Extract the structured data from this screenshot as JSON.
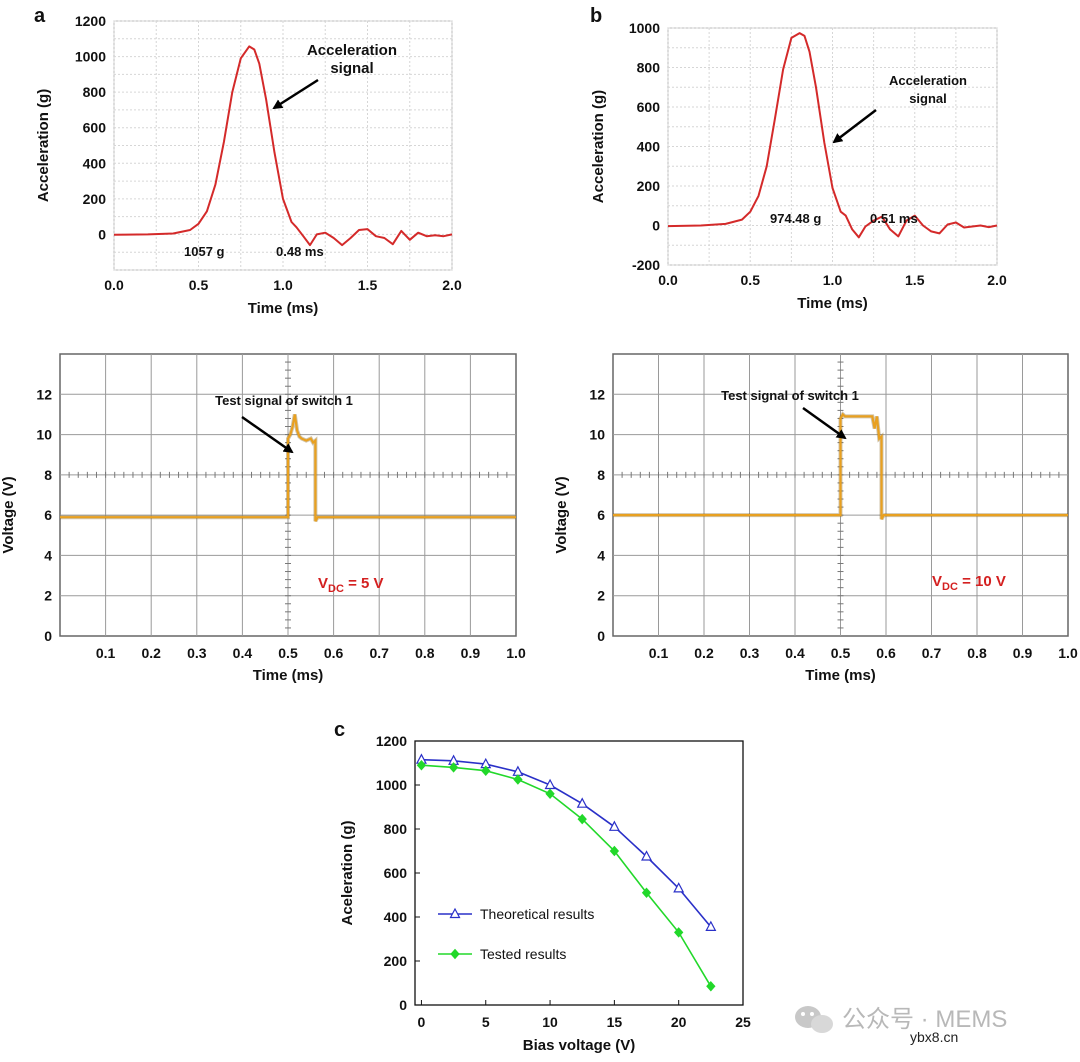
{
  "panels": {
    "a_label": "a",
    "b_label": "b",
    "c_label": "c"
  },
  "chart_data": [
    {
      "id": "a_top",
      "type": "line",
      "xlabel": "Time (ms)",
      "ylabel": "Acceleration (g)",
      "xlim": [
        0.0,
        2.0
      ],
      "ylim": [
        -200,
        1200
      ],
      "xticks": [
        "0.0",
        "0.5",
        "1.0",
        "1.5",
        "2.0"
      ],
      "yticks": [
        "0",
        "200",
        "400",
        "600",
        "800",
        "1000",
        "1200"
      ],
      "grid": true,
      "color": "#d42a2a",
      "annotation": "Acceleration signal",
      "peak_label": "1057 g",
      "width_label": "0.48 ms",
      "series": [
        {
          "name": "Acceleration signal",
          "x": [
            0.0,
            0.2,
            0.35,
            0.45,
            0.5,
            0.55,
            0.6,
            0.65,
            0.7,
            0.75,
            0.8,
            0.83,
            0.86,
            0.9,
            0.95,
            1.0,
            1.05,
            1.08,
            1.12,
            1.16,
            1.2,
            1.25,
            1.3,
            1.35,
            1.4,
            1.45,
            1.5,
            1.55,
            1.6,
            1.65,
            1.7,
            1.75,
            1.8,
            1.85,
            1.9,
            1.95,
            2.0
          ],
          "y": [
            -2,
            0,
            5,
            25,
            60,
            130,
            280,
            520,
            800,
            990,
            1057,
            1040,
            960,
            760,
            460,
            200,
            70,
            40,
            -10,
            -60,
            0,
            10,
            -20,
            -60,
            -20,
            25,
            30,
            -10,
            -20,
            -55,
            20,
            -30,
            10,
            -10,
            -5,
            -10,
            0
          ]
        }
      ]
    },
    {
      "id": "b_top",
      "type": "line",
      "xlabel": "Time (ms)",
      "ylabel": "Acceleration (g)",
      "xlim": [
        0.0,
        2.0
      ],
      "ylim": [
        -200,
        1000
      ],
      "xticks": [
        "0.0",
        "0.5",
        "1.0",
        "1.5",
        "2.0"
      ],
      "yticks": [
        "-200",
        "0",
        "200",
        "400",
        "600",
        "800",
        "1000"
      ],
      "grid": true,
      "color": "#d42a2a",
      "annotation": "Acceleration signal",
      "peak_label": "974.48 g",
      "width_label": "0.51 ms",
      "series": [
        {
          "name": "Acceleration signal",
          "x": [
            0.0,
            0.2,
            0.35,
            0.45,
            0.5,
            0.55,
            0.6,
            0.65,
            0.7,
            0.75,
            0.8,
            0.83,
            0.86,
            0.9,
            0.95,
            1.0,
            1.05,
            1.08,
            1.12,
            1.16,
            1.2,
            1.25,
            1.3,
            1.35,
            1.4,
            1.45,
            1.5,
            1.55,
            1.6,
            1.65,
            1.7,
            1.75,
            1.8,
            1.85,
            1.9,
            1.95,
            2.0
          ],
          "y": [
            -3,
            0,
            8,
            30,
            70,
            150,
            300,
            540,
            790,
            950,
            974,
            960,
            880,
            700,
            420,
            190,
            70,
            50,
            -20,
            -60,
            -5,
            25,
            45,
            -20,
            -55,
            25,
            50,
            0,
            -30,
            -40,
            5,
            15,
            -10,
            -5,
            0,
            -8,
            0
          ]
        }
      ]
    },
    {
      "id": "a_bottom",
      "type": "line",
      "xlabel": "Time (ms)",
      "ylabel": "Voltage (V)",
      "xlim": [
        0.0,
        1.0
      ],
      "ylim": [
        0,
        14
      ],
      "xticks": [
        "0.1",
        "0.2",
        "0.3",
        "0.4",
        "0.5",
        "0.6",
        "0.7",
        "0.8",
        "0.9",
        "1.0"
      ],
      "yticks": [
        "0",
        "2",
        "4",
        "6",
        "8",
        "10",
        "12"
      ],
      "grid": true,
      "color": "#e8a020",
      "annotation": "Test signal of switch 1",
      "vdc_prefix": "V",
      "vdc_sub": "DC",
      "vdc_value": " = 5 V",
      "series": [
        {
          "name": "Test signal of switch 1",
          "x": [
            0.0,
            0.5,
            0.5,
            0.505,
            0.51,
            0.515,
            0.52,
            0.525,
            0.53,
            0.54,
            0.55,
            0.555,
            0.56,
            0.56,
            0.565,
            1.0
          ],
          "y": [
            5.9,
            5.9,
            9.8,
            10.0,
            10.4,
            11.0,
            10.2,
            9.9,
            9.8,
            9.7,
            9.8,
            9.6,
            9.7,
            5.7,
            5.9,
            5.9
          ]
        }
      ]
    },
    {
      "id": "b_bottom",
      "type": "line",
      "xlabel": "Time (ms)",
      "ylabel": "Voltage (V)",
      "xlim": [
        0.0,
        1.0
      ],
      "ylim": [
        0,
        14
      ],
      "xticks": [
        "0.1",
        "0.2",
        "0.3",
        "0.4",
        "0.5",
        "0.6",
        "0.7",
        "0.8",
        "0.9",
        "1.0"
      ],
      "yticks": [
        "0",
        "2",
        "4",
        "6",
        "8",
        "10",
        "12"
      ],
      "grid": true,
      "color": "#e8a020",
      "annotation": "Test signal of switch 1",
      "vdc_prefix": "V",
      "vdc_sub": "DC",
      "vdc_value": " = 10 V",
      "series": [
        {
          "name": "Test signal of switch 1",
          "x": [
            0.0,
            0.5,
            0.5,
            0.505,
            0.51,
            0.57,
            0.575,
            0.58,
            0.585,
            0.59,
            0.59,
            0.595,
            1.0
          ],
          "y": [
            6.0,
            6.0,
            10.8,
            11.0,
            10.9,
            10.9,
            10.3,
            10.9,
            9.8,
            9.9,
            5.8,
            6.0,
            6.0
          ]
        }
      ]
    },
    {
      "id": "c",
      "type": "line",
      "xlabel": "Bias voltage (V)",
      "ylabel": "Aceleration (g)",
      "xlim": [
        -0.5,
        25
      ],
      "ylim": [
        0,
        1200
      ],
      "xticks": [
        "0",
        "5",
        "10",
        "15",
        "20",
        "25"
      ],
      "yticks": [
        "0",
        "200",
        "400",
        "600",
        "800",
        "1000",
        "1200"
      ],
      "grid": false,
      "legend": "bottom-left",
      "x": [
        0,
        2.5,
        5,
        7.5,
        10,
        12.5,
        15,
        17.5,
        20,
        22.5
      ],
      "series": [
        {
          "name": "Theoretical results",
          "color": "#2a30c8",
          "marker": "triangle",
          "values": [
            1115,
            1110,
            1095,
            1060,
            1000,
            915,
            810,
            675,
            530,
            355
          ]
        },
        {
          "name": "Tested results",
          "color": "#22d82a",
          "marker": "diamond",
          "values": [
            1090,
            1080,
            1065,
            1025,
            960,
            845,
            700,
            510,
            330,
            85
          ]
        }
      ]
    }
  ],
  "watermark": {
    "text": "公众号 · MEMS",
    "site": "ybx8.cn"
  }
}
